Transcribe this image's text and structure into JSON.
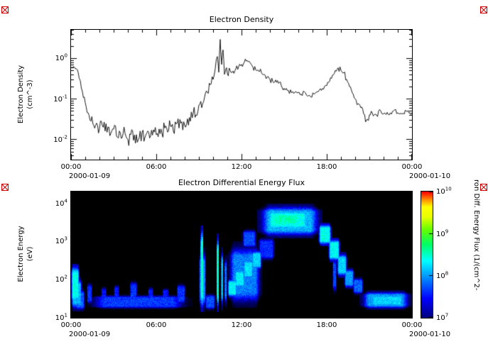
{
  "figure": {
    "background": "#ffffff",
    "trace_color": "#000000",
    "spectrogram_background": "#000000",
    "broken_image_marker_color": "#cc0000"
  },
  "chart_data": [
    {
      "type": "line",
      "title": "Electron Density",
      "ylabel_lines": [
        "Electron Density",
        "(cm^-3)"
      ],
      "x_ticks": [
        "00:00",
        "06:00",
        "12:00",
        "18:00",
        "00:00"
      ],
      "x_date_left": "2000-01-09",
      "x_date_right": "2000-01-10",
      "x_range_hours": [
        0,
        24
      ],
      "y_ticks_exp": [
        0,
        -1,
        -2
      ],
      "y_log_range": [
        -2.5,
        0.7
      ],
      "grid": false,
      "points": [
        [
          0.0,
          0.6,
          0.03
        ],
        [
          0.15,
          0.62,
          0.04
        ],
        [
          0.3,
          0.55,
          0.04
        ],
        [
          0.5,
          0.45,
          0.05
        ],
        [
          0.65,
          0.28,
          0.06
        ],
        [
          0.8,
          0.15,
          0.08
        ],
        [
          1.0,
          0.08,
          0.1
        ],
        [
          1.2,
          0.045,
          0.12
        ],
        [
          1.4,
          0.028,
          0.15
        ],
        [
          1.6,
          0.022,
          0.18
        ],
        [
          1.8,
          0.025,
          0.18
        ],
        [
          2.0,
          0.018,
          0.18
        ],
        [
          2.2,
          0.022,
          0.18
        ],
        [
          2.4,
          0.016,
          0.18
        ],
        [
          2.6,
          0.02,
          0.18
        ],
        [
          2.8,
          0.014,
          0.18
        ],
        [
          3.0,
          0.018,
          0.2
        ],
        [
          3.2,
          0.012,
          0.2
        ],
        [
          3.4,
          0.016,
          0.2
        ],
        [
          3.6,
          0.011,
          0.2
        ],
        [
          3.8,
          0.014,
          0.2
        ],
        [
          4.0,
          0.01,
          0.2
        ],
        [
          4.2,
          0.013,
          0.2
        ],
        [
          4.4,
          0.0095,
          0.2
        ],
        [
          4.6,
          0.013,
          0.2
        ],
        [
          4.8,
          0.011,
          0.2
        ],
        [
          5.0,
          0.015,
          0.2
        ],
        [
          5.2,
          0.011,
          0.2
        ],
        [
          5.4,
          0.016,
          0.2
        ],
        [
          5.6,
          0.012,
          0.2
        ],
        [
          5.8,
          0.017,
          0.2
        ],
        [
          6.0,
          0.013,
          0.2
        ],
        [
          6.2,
          0.018,
          0.2
        ],
        [
          6.4,
          0.014,
          0.2
        ],
        [
          6.6,
          0.019,
          0.2
        ],
        [
          6.8,
          0.015,
          0.2
        ],
        [
          7.0,
          0.021,
          0.2
        ],
        [
          7.2,
          0.016,
          0.2
        ],
        [
          7.4,
          0.024,
          0.2
        ],
        [
          7.6,
          0.019,
          0.2
        ],
        [
          7.8,
          0.027,
          0.18
        ],
        [
          8.0,
          0.022,
          0.18
        ],
        [
          8.2,
          0.032,
          0.18
        ],
        [
          8.4,
          0.028,
          0.16
        ],
        [
          8.6,
          0.045,
          0.16
        ],
        [
          8.8,
          0.04,
          0.15
        ],
        [
          9.0,
          0.07,
          0.15
        ],
        [
          9.2,
          0.06,
          0.15
        ],
        [
          9.4,
          0.11,
          0.15
        ],
        [
          9.6,
          0.14,
          0.14
        ],
        [
          9.8,
          0.22,
          0.12
        ],
        [
          10.0,
          0.3,
          0.12
        ],
        [
          10.15,
          0.55,
          0.12
        ],
        [
          10.3,
          1.1,
          0.1
        ],
        [
          10.4,
          0.45,
          0.1
        ],
        [
          10.5,
          2.9,
          0.08
        ],
        [
          10.6,
          0.7,
          0.12
        ],
        [
          10.7,
          1.6,
          0.1
        ],
        [
          10.8,
          0.4,
          0.12
        ],
        [
          10.9,
          0.55,
          0.1
        ],
        [
          11.0,
          0.42,
          0.1
        ],
        [
          11.2,
          0.5,
          0.09
        ],
        [
          11.4,
          0.48,
          0.09
        ],
        [
          11.6,
          0.55,
          0.09
        ],
        [
          11.8,
          0.62,
          0.08
        ],
        [
          12.0,
          0.7,
          0.08
        ],
        [
          12.2,
          0.8,
          0.07
        ],
        [
          12.4,
          0.88,
          0.07
        ],
        [
          12.6,
          0.78,
          0.07
        ],
        [
          12.8,
          0.6,
          0.08
        ],
        [
          13.0,
          0.52,
          0.08
        ],
        [
          13.2,
          0.48,
          0.08
        ],
        [
          13.4,
          0.44,
          0.08
        ],
        [
          13.6,
          0.4,
          0.08
        ],
        [
          13.8,
          0.34,
          0.08
        ],
        [
          14.0,
          0.3,
          0.08
        ],
        [
          14.2,
          0.27,
          0.08
        ],
        [
          14.4,
          0.29,
          0.08
        ],
        [
          14.6,
          0.24,
          0.08
        ],
        [
          14.8,
          0.21,
          0.08
        ],
        [
          15.0,
          0.18,
          0.07
        ],
        [
          15.3,
          0.16,
          0.07
        ],
        [
          15.6,
          0.15,
          0.07
        ],
        [
          15.9,
          0.14,
          0.06
        ],
        [
          16.2,
          0.13,
          0.06
        ],
        [
          16.5,
          0.14,
          0.06
        ],
        [
          16.8,
          0.12,
          0.06
        ],
        [
          17.1,
          0.13,
          0.06
        ],
        [
          17.4,
          0.15,
          0.06
        ],
        [
          17.7,
          0.18,
          0.06
        ],
        [
          18.0,
          0.21,
          0.06
        ],
        [
          18.2,
          0.27,
          0.06
        ],
        [
          18.4,
          0.38,
          0.07
        ],
        [
          18.6,
          0.5,
          0.08
        ],
        [
          18.8,
          0.58,
          0.08
        ],
        [
          19.0,
          0.5,
          0.08
        ],
        [
          19.2,
          0.44,
          0.08
        ],
        [
          19.4,
          0.3,
          0.08
        ],
        [
          19.6,
          0.2,
          0.08
        ],
        [
          19.8,
          0.14,
          0.08
        ],
        [
          20.0,
          0.1,
          0.08
        ],
        [
          20.2,
          0.075,
          0.08
        ],
        [
          20.4,
          0.06,
          0.08
        ],
        [
          20.6,
          0.042,
          0.1
        ],
        [
          20.8,
          0.03,
          0.1
        ],
        [
          21.0,
          0.04,
          0.08
        ],
        [
          21.2,
          0.045,
          0.07
        ],
        [
          21.5,
          0.04,
          0.07
        ],
        [
          21.8,
          0.05,
          0.06
        ],
        [
          22.1,
          0.044,
          0.06
        ],
        [
          22.4,
          0.04,
          0.06
        ],
        [
          22.7,
          0.05,
          0.06
        ],
        [
          23.0,
          0.045,
          0.06
        ],
        [
          23.3,
          0.042,
          0.06
        ],
        [
          23.6,
          0.05,
          0.05
        ],
        [
          23.8,
          0.044,
          0.05
        ],
        [
          24.0,
          0.046,
          0.05
        ]
      ]
    },
    {
      "type": "heatmap",
      "title": "Electron Differential Energy Flux",
      "ylabel_lines": [
        "Electron Energy",
        "(eV)"
      ],
      "x_ticks": [
        "00:00",
        "06:00",
        "12:00",
        "18:00",
        "00:00"
      ],
      "x_date_left": "2000-01-09",
      "x_date_right": "2000-01-10",
      "x_range_hours": [
        0,
        24
      ],
      "y_ticks_exp": [
        1,
        2,
        3,
        4
      ],
      "y_log_range": [
        1,
        4.3
      ],
      "colorbar": {
        "ticks_exp": [
          7,
          8,
          9,
          10
        ],
        "range_exp": [
          7,
          10
        ],
        "label": "ron Diff. Energy Flux (1/(cm^2-",
        "colormap": [
          [
            -0.25,
            "#000000"
          ],
          [
            0.0,
            "#000080"
          ],
          [
            0.15,
            "#0000ff"
          ],
          [
            0.3,
            "#0080ff"
          ],
          [
            0.45,
            "#00ffff"
          ],
          [
            0.58,
            "#00ff66"
          ],
          [
            0.7,
            "#66ff00"
          ],
          [
            0.8,
            "#e8ff00"
          ],
          [
            0.88,
            "#ffff00"
          ],
          [
            0.94,
            "#ff8800"
          ],
          [
            1.0,
            "#ff0000"
          ]
        ]
      },
      "features_legend": "each feature: [t_start_h, t_end_h, energy_min_eV, energy_max_eV, log10_flux]",
      "features": [
        [
          0.0,
          0.6,
          20,
          260,
          8.4
        ],
        [
          0.0,
          0.8,
          15,
          120,
          8.1
        ],
        [
          0.3,
          1.0,
          14,
          60,
          7.8
        ],
        [
          0.9,
          8.6,
          16,
          42,
          7.65
        ],
        [
          1.1,
          1.5,
          20,
          90,
          7.6
        ],
        [
          2.1,
          2.5,
          20,
          70,
          7.5
        ],
        [
          3.0,
          3.4,
          22,
          80,
          7.5
        ],
        [
          4.1,
          4.7,
          24,
          100,
          7.6
        ],
        [
          5.4,
          5.8,
          20,
          70,
          7.5
        ],
        [
          6.4,
          6.9,
          20,
          65,
          7.5
        ],
        [
          7.4,
          8.1,
          20,
          85,
          7.6
        ],
        [
          9.1,
          9.32,
          14,
          2600,
          8.55
        ],
        [
          9.0,
          9.5,
          14,
          700,
          8.0
        ],
        [
          9.4,
          10.2,
          15,
          45,
          7.7
        ],
        [
          10.25,
          10.42,
          14,
          1600,
          8.5
        ],
        [
          10.55,
          10.72,
          16,
          700,
          8.1
        ],
        [
          10.8,
          10.97,
          18,
          450,
          7.9
        ],
        [
          11.0,
          13.45,
          18,
          1000,
          7.9
        ],
        [
          11.0,
          11.7,
          32,
          110,
          8.3
        ],
        [
          11.5,
          12.25,
          55,
          200,
          8.3
        ],
        [
          12.1,
          12.85,
          95,
          360,
          8.25
        ],
        [
          12.7,
          13.45,
          170,
          620,
          8.2
        ],
        [
          12.0,
          13.1,
          600,
          2200,
          7.7
        ],
        [
          13.1,
          17.7,
          1200,
          9500,
          8.1
        ],
        [
          13.5,
          17.0,
          1900,
          6800,
          8.4
        ],
        [
          14.0,
          16.3,
          2500,
          5600,
          8.55
        ],
        [
          13.1,
          14.4,
          280,
          1400,
          7.6
        ],
        [
          17.4,
          18.35,
          750,
          3000,
          8.4
        ],
        [
          18.1,
          18.95,
          280,
          1250,
          8.35
        ],
        [
          18.4,
          18.7,
          40,
          420,
          7.7
        ],
        [
          18.7,
          19.45,
          110,
          520,
          8.2
        ],
        [
          19.2,
          19.95,
          55,
          210,
          8.0
        ],
        [
          19.8,
          20.6,
          38,
          120,
          7.8
        ],
        [
          20.3,
          24.0,
          16,
          52,
          8.0
        ],
        [
          20.8,
          23.7,
          19,
          42,
          8.2
        ]
      ]
    }
  ]
}
